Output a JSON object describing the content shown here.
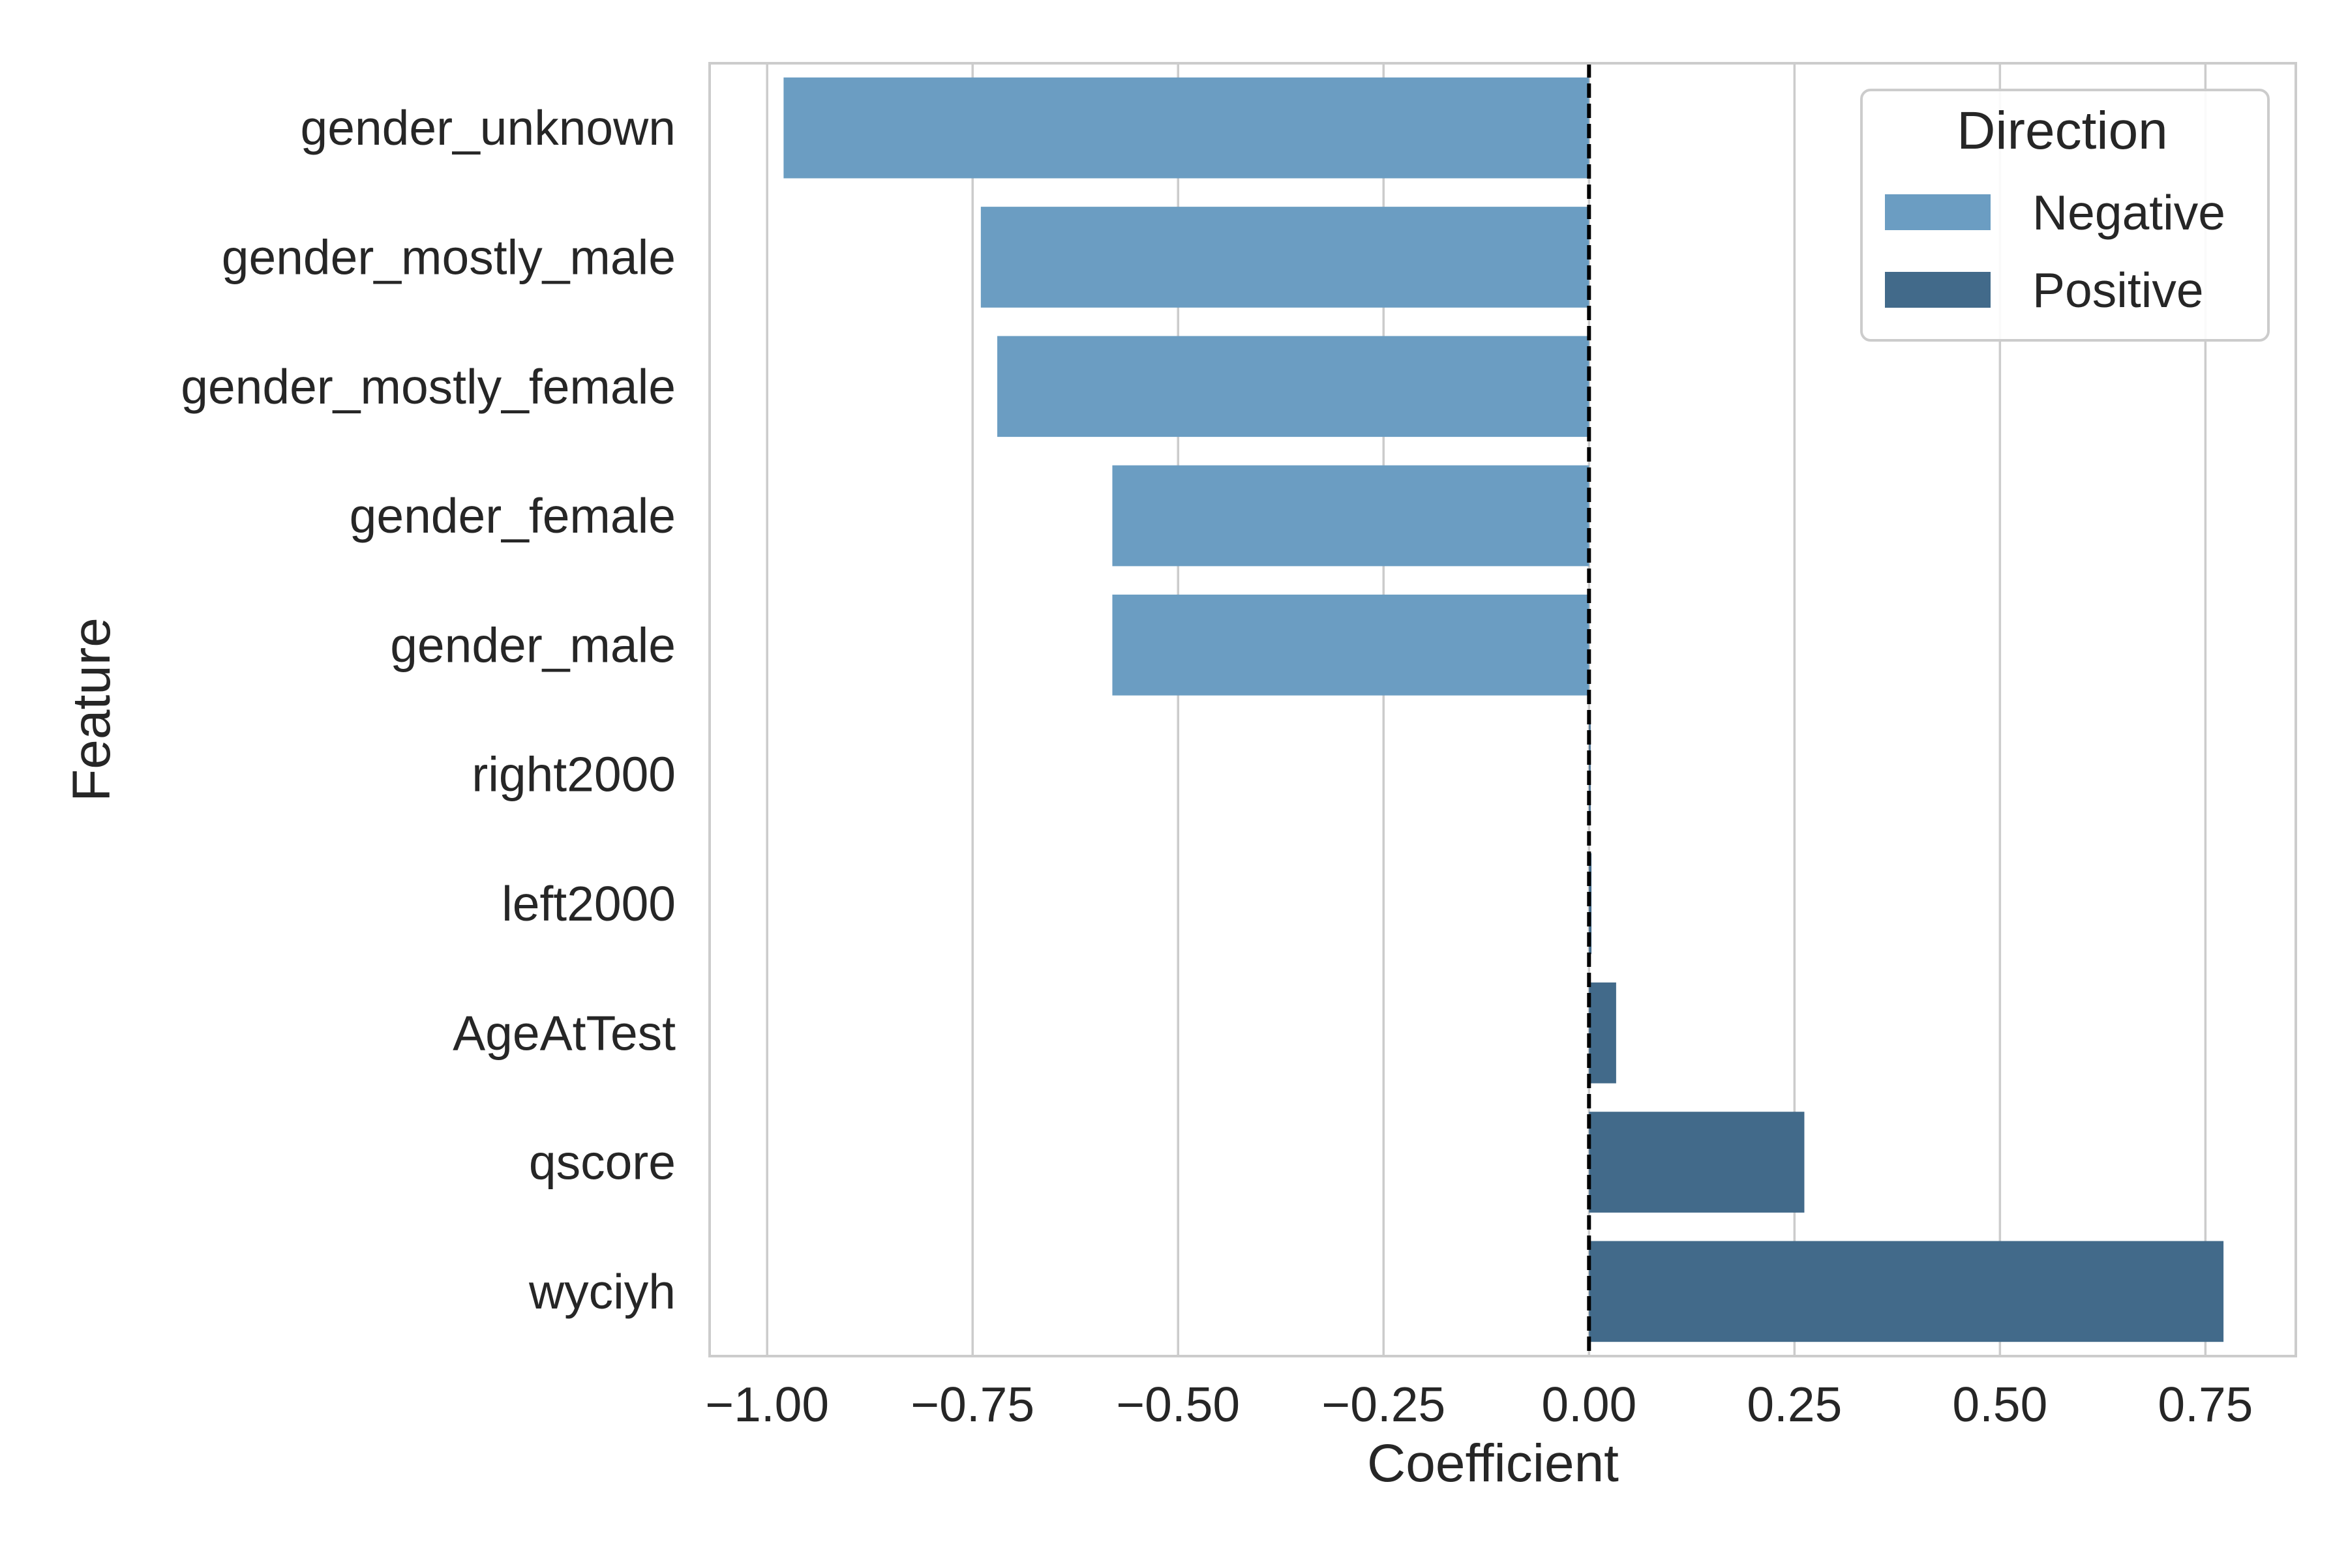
{
  "chart_data": {
    "type": "bar",
    "orientation": "horizontal",
    "xlabel": "Coefficient",
    "ylabel": "Feature",
    "xlim": [
      -1.07,
      0.86
    ],
    "xticks": [
      -1.0,
      -0.75,
      -0.5,
      -0.25,
      0.0,
      0.25,
      0.5,
      0.75
    ],
    "xtick_labels": [
      "−1.00",
      "−0.75",
      "−0.50",
      "−0.25",
      "0.00",
      "0.25",
      "0.50",
      "0.75"
    ],
    "grid": "vertical",
    "reference_line": {
      "x": 0,
      "style": "dashed",
      "color": "#000000"
    },
    "categories": [
      "gender_unknown",
      "gender_mostly_male",
      "gender_mostly_female",
      "gender_female",
      "gender_male",
      "right2000",
      "left2000",
      "AgeAtTest",
      "qscore",
      "wyciyh"
    ],
    "values": [
      -0.98,
      -0.74,
      -0.72,
      -0.58,
      -0.58,
      0.002,
      0.003,
      0.033,
      0.262,
      0.772
    ],
    "direction": [
      "Negative",
      "Negative",
      "Negative",
      "Negative",
      "Negative",
      "Positive",
      "Positive",
      "Positive",
      "Positive",
      "Positive"
    ],
    "legend": {
      "title": "Direction",
      "placement": "top-right",
      "entries": [
        {
          "label": "Negative",
          "color": "#6b9dc2"
        },
        {
          "label": "Positive",
          "color": "#426a8a"
        }
      ]
    }
  }
}
